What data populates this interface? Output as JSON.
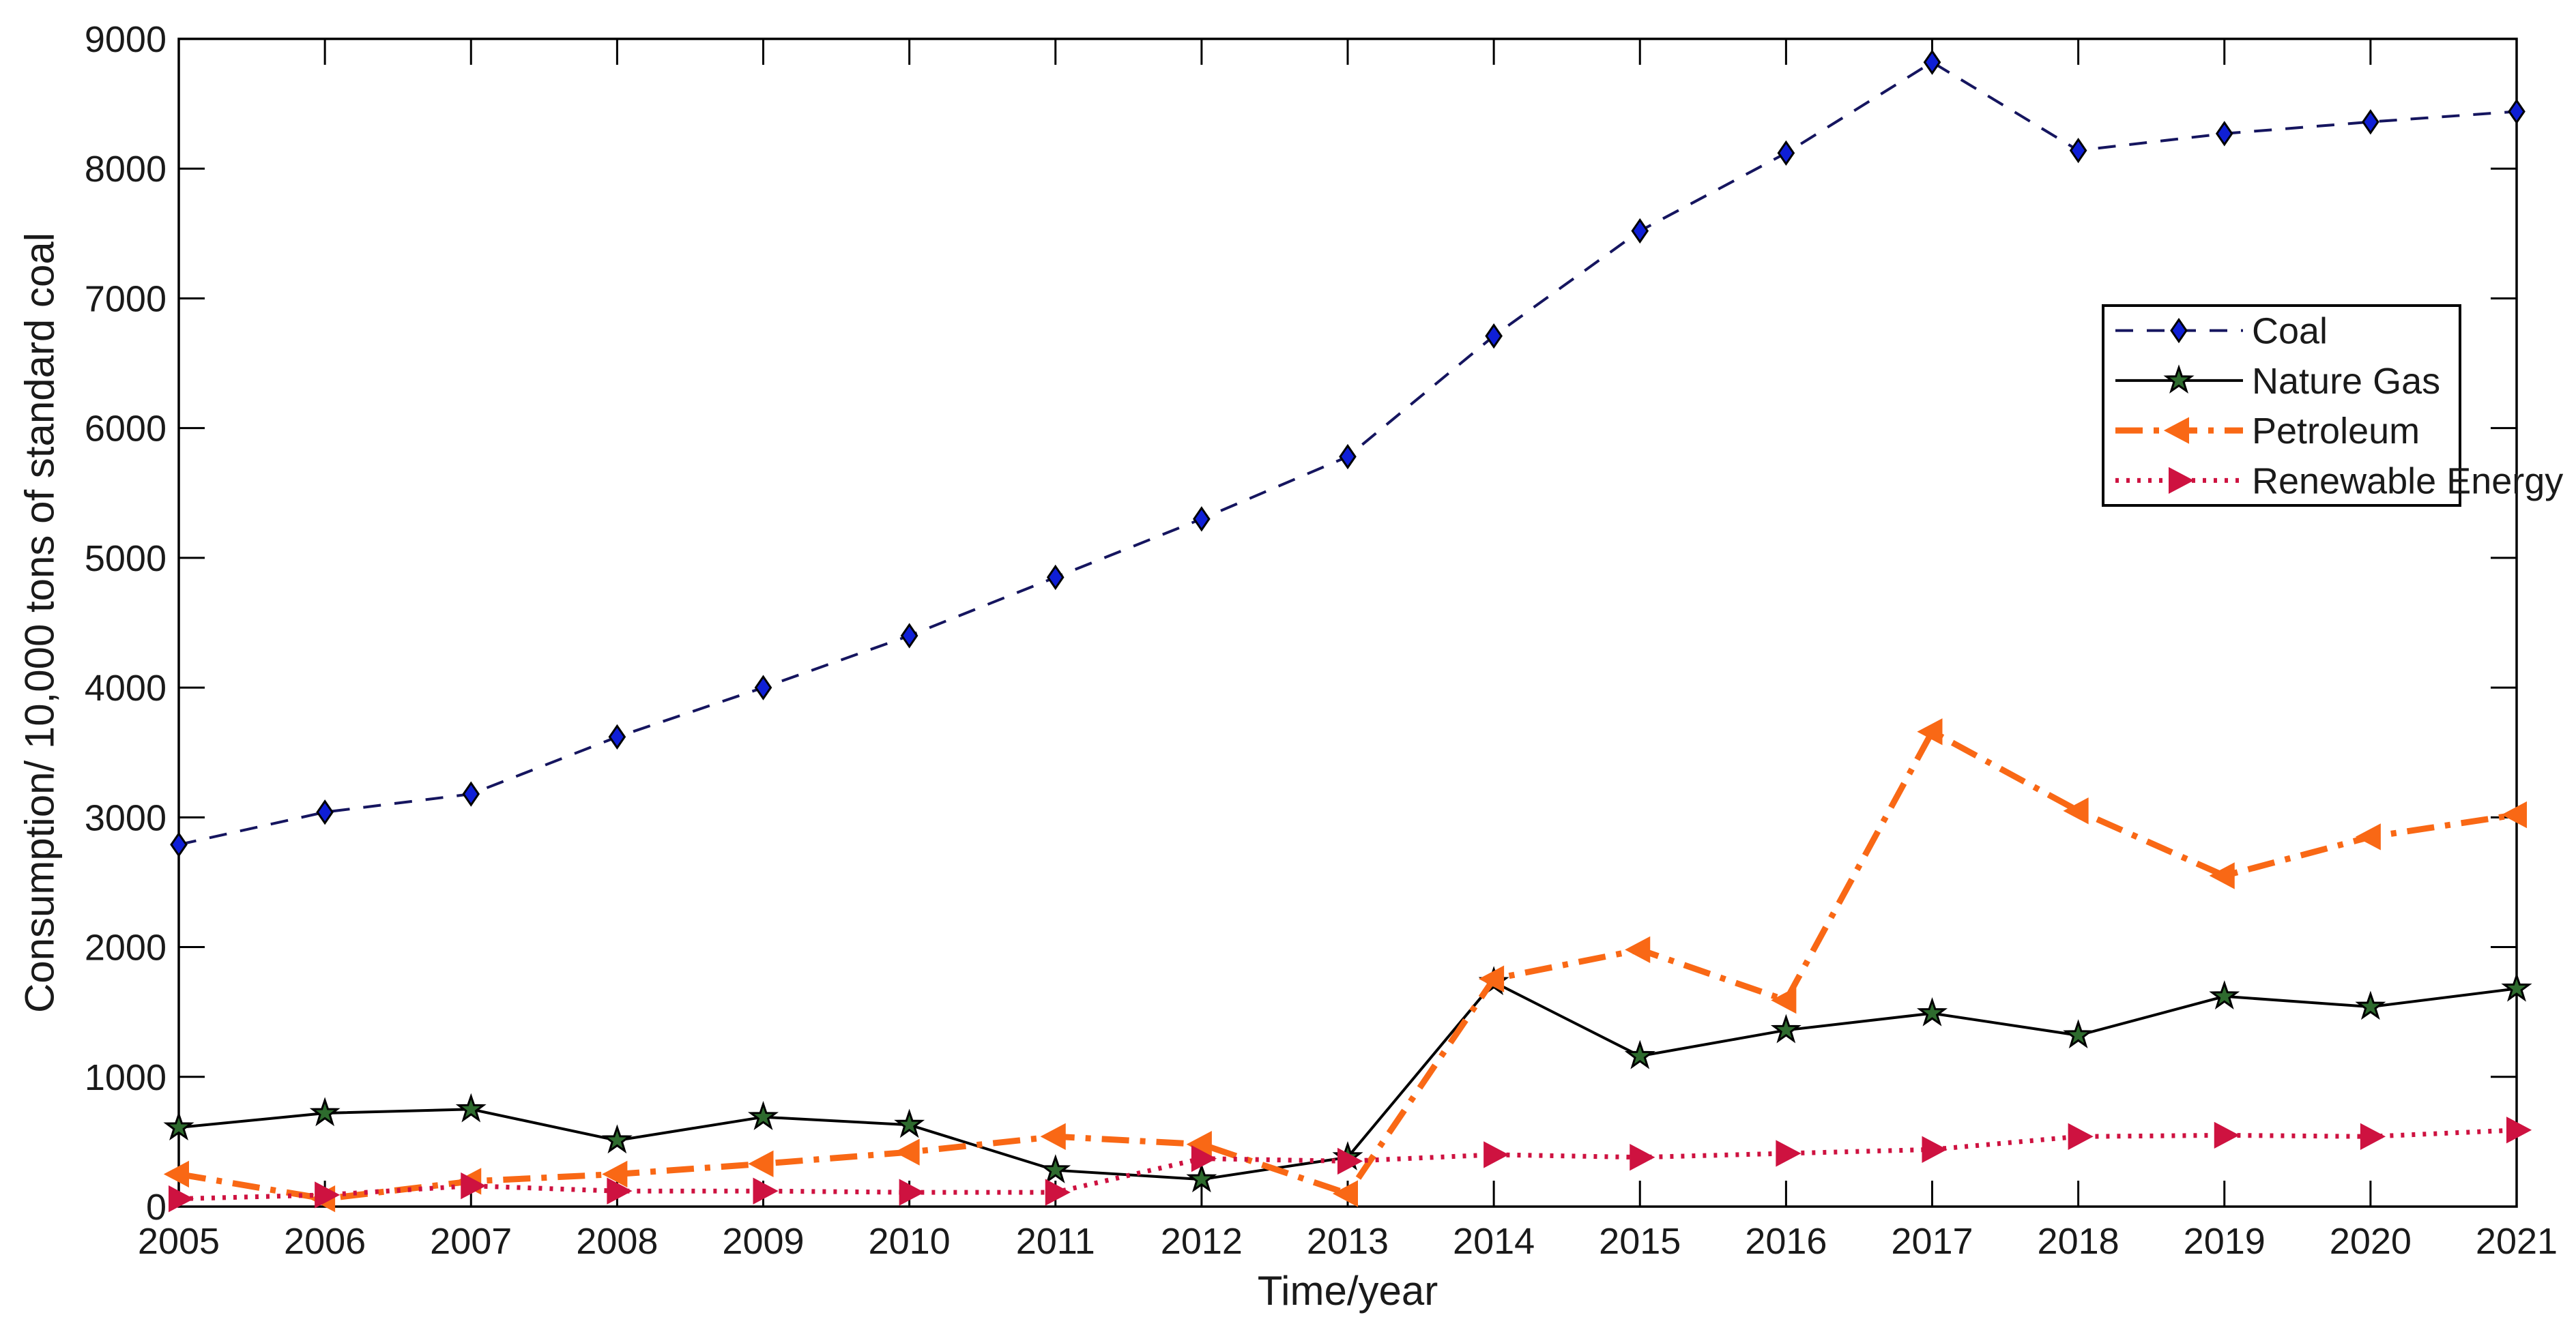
{
  "figure": {
    "background": "#ffffff",
    "text_color": "#1a1a1a",
    "axis_color": "#000000"
  },
  "chart_data": {
    "type": "line",
    "title": "",
    "xlabel": "Time/year",
    "ylabel": "Consumption/ 10,000 tons of standard coal",
    "x": [
      2005,
      2006,
      2007,
      2008,
      2009,
      2010,
      2011,
      2012,
      2013,
      2014,
      2015,
      2016,
      2017,
      2018,
      2019,
      2020,
      2021
    ],
    "ylim": [
      0,
      9000
    ],
    "ytick_step": 1000,
    "grid": false,
    "legend_position": "upper-right-inside",
    "series": [
      {
        "name": "Coal",
        "line_style": "dashed",
        "line_color": "#15155f",
        "marker": "diamond",
        "marker_fill": "#0f1fd6",
        "marker_edge": "#000000",
        "values": [
          2790,
          3040,
          3180,
          3620,
          4000,
          4400,
          4850,
          5300,
          5780,
          6710,
          7520,
          8120,
          8820,
          8140,
          8270,
          8360,
          8440
        ]
      },
      {
        "name": "Nature Gas",
        "line_style": "solid",
        "line_color": "#000000",
        "marker": "star",
        "marker_fill": "#2e6b2e",
        "marker_edge": "#000000",
        "values": [
          610,
          720,
          750,
          510,
          690,
          630,
          280,
          210,
          380,
          1730,
          1160,
          1360,
          1490,
          1320,
          1620,
          1540,
          1680
        ]
      },
      {
        "name": "Petroleum",
        "line_style": "dashdot",
        "line_color": "#f96815",
        "marker": "triangle-left",
        "marker_fill": "#f96815",
        "marker_edge": "#f96815",
        "values": [
          250,
          60,
          195,
          250,
          330,
          420,
          540,
          480,
          100,
          1755,
          1980,
          1590,
          3660,
          3050,
          2550,
          2850,
          3020
        ]
      },
      {
        "name": "Renewable Energy",
        "line_style": "dotted",
        "line_color": "#ce1240",
        "marker": "triangle-right",
        "marker_fill": "#ce1240",
        "marker_edge": "#ce1240",
        "values": [
          60,
          90,
          160,
          120,
          120,
          110,
          110,
          370,
          350,
          400,
          380,
          410,
          440,
          540,
          550,
          540,
          590
        ]
      }
    ]
  }
}
